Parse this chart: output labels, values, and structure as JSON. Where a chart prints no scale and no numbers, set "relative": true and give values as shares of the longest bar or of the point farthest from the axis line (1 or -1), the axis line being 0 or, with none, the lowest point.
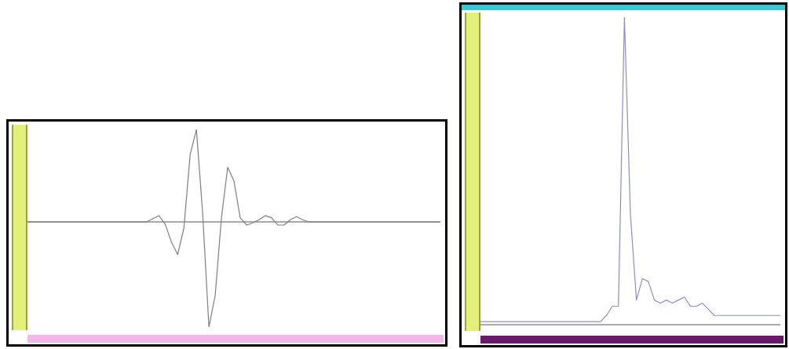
{
  "chart_data": [
    {
      "type": "line",
      "relative": true,
      "categories": [
        null,
        null,
        null,
        null,
        null,
        null,
        null,
        null,
        null,
        null,
        null,
        null,
        null,
        null,
        null,
        null,
        null,
        null,
        null,
        null,
        null,
        null,
        null,
        null,
        null,
        null,
        null,
        null,
        null,
        null,
        null,
        null,
        null,
        null,
        null,
        null,
        null,
        null,
        null,
        null,
        null,
        null,
        null,
        null,
        null,
        null,
        null,
        null,
        null,
        null,
        null,
        null,
        null,
        null,
        null,
        null,
        null,
        null,
        null,
        null,
        null,
        null,
        null,
        null,
        null,
        null,
        null
      ],
      "series": [
        {
          "color": "#7f7f7f",
          "values": [
            0,
            0,
            0,
            0,
            0,
            0,
            0,
            0,
            0,
            0,
            0,
            0,
            0,
            0,
            0,
            0,
            0,
            0,
            0,
            0,
            0.03,
            0.06,
            -0.02,
            -0.19,
            -0.31,
            -0.06,
            0.64,
            0.88,
            0.08,
            -1,
            -0.7,
            0.04,
            0.52,
            0.39,
            0.04,
            -0.03,
            -0.01,
            0.02,
            0.06,
            0.04,
            -0.03,
            -0.03,
            0.02,
            0.05,
            0.02,
            0,
            0,
            0,
            0,
            0,
            0,
            0,
            0,
            0,
            0,
            0,
            0,
            0,
            0,
            0,
            0,
            0,
            0,
            0,
            0,
            0,
            0
          ]
        }
      ]
    },
    {
      "type": "line",
      "relative": true,
      "categories": [
        null,
        null,
        null,
        null,
        null,
        null,
        null,
        null,
        null,
        null,
        null,
        null,
        null,
        null,
        null,
        null,
        null,
        null,
        null,
        null,
        null,
        null,
        null,
        null,
        null,
        null,
        null,
        null,
        null,
        null,
        null,
        null,
        null,
        null,
        null,
        null,
        null,
        null,
        null,
        null,
        null,
        null,
        null,
        null,
        null,
        null,
        null,
        null,
        null,
        null,
        null
      ],
      "series": [
        {
          "color": "#8c8ccc",
          "values": [
            0.01,
            0.01,
            0.01,
            0.01,
            0.01,
            0.01,
            0.01,
            0.01,
            0.01,
            0.01,
            0.01,
            0.01,
            0.01,
            0.01,
            0.01,
            0.01,
            0.01,
            0.01,
            0.01,
            0.01,
            0.01,
            0.03,
            0.06,
            0.06,
            1,
            0.36,
            0.08,
            0.15,
            0.14,
            0.08,
            0.07,
            0.08,
            0.07,
            0.08,
            0.09,
            0.06,
            0.06,
            0.07,
            0.05,
            0.03,
            0.03,
            0.03,
            0.03,
            0.03,
            0.03,
            0.03,
            0.03,
            0.03,
            0.03,
            0.03,
            0.03
          ]
        }
      ]
    }
  ]
}
